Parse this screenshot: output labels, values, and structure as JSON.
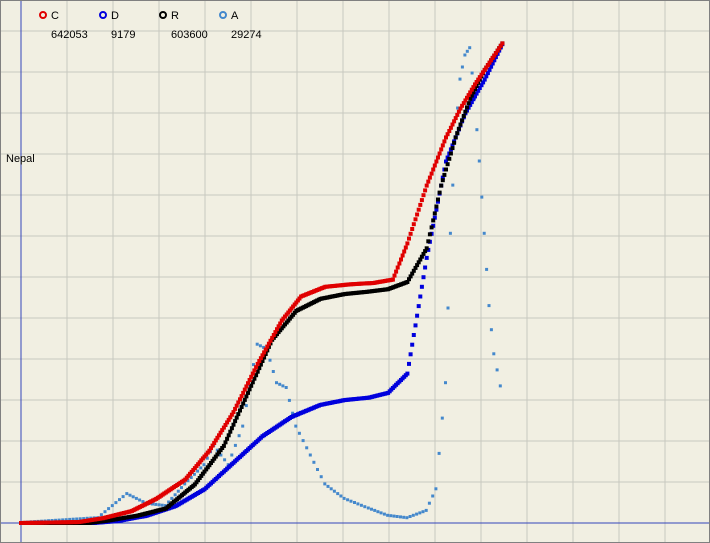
{
  "window": {
    "country_label": "Nepal"
  },
  "chart_data": {
    "type": "scatter",
    "title": "",
    "xlabel": "",
    "ylabel": "",
    "grid": true,
    "legend_placement": "top-left",
    "x_range": [
      0,
      100
    ],
    "y_range": [
      0,
      100
    ],
    "series": [
      {
        "name": "C",
        "value": "642053",
        "color": "#e00000",
        "points": [
          [
            0,
            0
          ],
          [
            12,
            0.2
          ],
          [
            17,
            1
          ],
          [
            23,
            2.5
          ],
          [
            28,
            5
          ],
          [
            34,
            9
          ],
          [
            39,
            15
          ],
          [
            44,
            23
          ],
          [
            49,
            33
          ],
          [
            54,
            42
          ],
          [
            58,
            47
          ],
          [
            63,
            49
          ],
          [
            68,
            49.5
          ],
          [
            73,
            49.8
          ],
          [
            77,
            50.5
          ],
          [
            80,
            58
          ],
          [
            84,
            70
          ],
          [
            88,
            80
          ],
          [
            91,
            86
          ],
          [
            94,
            91
          ],
          [
            96,
            94
          ],
          [
            98,
            97
          ],
          [
            100,
            100
          ]
        ]
      },
      {
        "name": "D",
        "value": "9179",
        "color": "#0000dd",
        "points": [
          [
            0,
            0
          ],
          [
            15,
            0
          ],
          [
            20,
            0.4
          ],
          [
            26,
            1.5
          ],
          [
            32,
            3.5
          ],
          [
            38,
            7
          ],
          [
            44,
            12.5
          ],
          [
            50,
            18
          ],
          [
            56,
            22
          ],
          [
            62,
            24.5
          ],
          [
            67,
            25.5
          ],
          [
            72,
            26
          ],
          [
            76,
            27
          ],
          [
            80,
            31
          ],
          [
            84,
            55
          ],
          [
            88,
            75
          ],
          [
            92,
            85
          ],
          [
            96,
            92
          ],
          [
            100,
            100
          ]
        ]
      },
      {
        "name": "R",
        "value": "603600",
        "color": "#000000",
        "points": [
          [
            0,
            0
          ],
          [
            14,
            0
          ],
          [
            18,
            0.5
          ],
          [
            24,
            1.5
          ],
          [
            30,
            3
          ],
          [
            36,
            8
          ],
          [
            42,
            16
          ],
          [
            47,
            27
          ],
          [
            52,
            38
          ],
          [
            57,
            44
          ],
          [
            62,
            46.5
          ],
          [
            67,
            47.5
          ],
          [
            72,
            48
          ],
          [
            76,
            48.5
          ],
          [
            80,
            50
          ],
          [
            84,
            57
          ],
          [
            87,
            70
          ],
          [
            90,
            80
          ],
          [
            93,
            88
          ],
          [
            96,
            94
          ],
          [
            100,
            100
          ]
        ]
      },
      {
        "name": "A",
        "value": "29274",
        "color": "#4488cc",
        "points": [
          [
            0,
            0
          ],
          [
            16,
            1
          ],
          [
            22,
            6
          ],
          [
            26,
            4
          ],
          [
            30,
            3.5
          ],
          [
            34,
            8
          ],
          [
            38,
            12
          ],
          [
            40,
            16
          ],
          [
            43,
            12
          ],
          [
            46,
            20
          ],
          [
            49,
            37
          ],
          [
            51,
            36
          ],
          [
            53,
            29
          ],
          [
            55,
            28
          ],
          [
            57,
            20
          ],
          [
            60,
            14
          ],
          [
            63,
            8
          ],
          [
            67,
            5
          ],
          [
            72,
            3
          ],
          [
            76,
            1.5
          ],
          [
            80,
            1
          ],
          [
            84,
            2.5
          ],
          [
            86,
            7
          ],
          [
            88,
            29
          ],
          [
            89,
            60
          ],
          [
            90,
            80
          ],
          [
            91,
            92
          ],
          [
            92,
            97
          ],
          [
            93,
            98.5
          ],
          [
            94,
            88
          ],
          [
            95,
            75
          ],
          [
            96,
            60
          ],
          [
            97,
            45
          ],
          [
            98,
            35
          ],
          [
            100,
            25
          ]
        ]
      }
    ]
  }
}
